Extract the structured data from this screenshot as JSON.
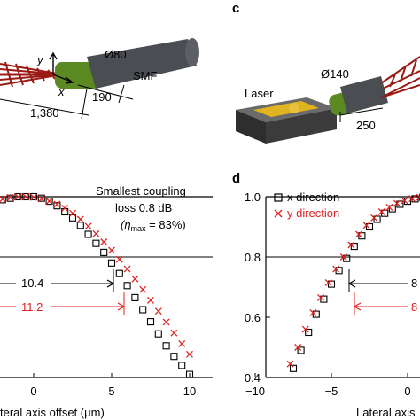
{
  "panels": {
    "a_partial": {
      "labels": {
        "diameter": "Ø80",
        "fiber": "SMF",
        "axis_x": "x",
        "axis_y": "y",
        "dim_1": "190",
        "dim_2": "1,380"
      }
    },
    "c": {
      "letter": "c",
      "labels": {
        "diameter": "Ø140",
        "laser": "Laser",
        "dim": "250"
      }
    },
    "d": {
      "letter": "d"
    }
  },
  "colors": {
    "red": "#e0201f",
    "fiber_dark": "#4a4d52",
    "coat_green": "#5c8a22",
    "lens_red": "#9c1a14",
    "gold": "#e0b320",
    "laser_block": "#3b3b3b"
  },
  "chart_data": [
    {
      "panel": "b",
      "type": "scatter",
      "xlabel_visible": "teral axis offset (μm)",
      "xlim": [
        -5.5,
        12
      ],
      "ylim": [
        0.4,
        1.0
      ],
      "x_ticks": [
        "0",
        "5",
        "10"
      ],
      "series": [
        {
          "name": "x direction",
          "marker": "square",
          "color": "#000000",
          "x": [
            -4.5,
            -4,
            -3.5,
            -3,
            -2.5,
            -2,
            -1.5,
            -1,
            -0.5,
            0,
            0.5,
            1,
            1.5,
            2,
            2.5,
            3,
            3.5,
            4,
            4.5,
            5,
            5.5,
            6,
            6.5,
            7,
            7.5,
            8,
            8.5,
            9,
            9.5,
            10
          ],
          "y": [
            0.91,
            0.935,
            0.955,
            0.97,
            0.98,
            0.99,
            0.995,
            1.0,
            1.0,
            1.0,
            0.995,
            0.985,
            0.97,
            0.95,
            0.93,
            0.905,
            0.875,
            0.845,
            0.815,
            0.78,
            0.745,
            0.705,
            0.665,
            0.625,
            0.585,
            0.545,
            0.505,
            0.47,
            0.44,
            0.41
          ]
        },
        {
          "name": "y direction",
          "marker": "cross",
          "color": "#e0201f",
          "x": [
            -4.5,
            -4,
            -3.5,
            -3,
            -2.5,
            -2,
            -1.5,
            -1,
            -0.5,
            0,
            0.5,
            1,
            1.5,
            2,
            2.5,
            3,
            3.5,
            4,
            4.5,
            5,
            5.5,
            6,
            6.5,
            7,
            7.5,
            8,
            8.5,
            9,
            9.5,
            10
          ],
          "y": [
            0.925,
            0.945,
            0.962,
            0.975,
            0.985,
            0.992,
            0.997,
            1.0,
            1.0,
            0.998,
            0.993,
            0.985,
            0.975,
            0.962,
            0.945,
            0.925,
            0.902,
            0.877,
            0.85,
            0.822,
            0.792,
            0.76,
            0.727,
            0.692,
            0.656,
            0.62,
            0.584,
            0.548,
            0.512,
            0.477
          ]
        }
      ],
      "annotations": {
        "smallest_1": "Smallest coupling",
        "smallest_2": "loss 0.8 dB",
        "eta_open": "(η",
        "eta_sub": "max",
        "eta_close": " = 83%)",
        "width_x": "10.4",
        "width_y": "11.2"
      }
    },
    {
      "panel": "d",
      "type": "scatter",
      "xlabel_visible": "Lateral axis",
      "xlim": [
        -10,
        2
      ],
      "ylim": [
        0.4,
        1.0
      ],
      "x_ticks": [
        "−10",
        "−5",
        "0"
      ],
      "y_ticks": [
        "0.4",
        "0.6",
        "0.8",
        "1.0"
      ],
      "legend": [
        {
          "label": "x direction",
          "marker": "square"
        },
        {
          "label": "y direction",
          "marker": "cross"
        }
      ],
      "series": [
        {
          "name": "x direction",
          "marker": "square",
          "color": "#000000",
          "x": [
            -7.5,
            -7,
            -6.5,
            -6,
            -5.5,
            -5,
            -4.5,
            -4,
            -3.5,
            -3,
            -2.5,
            -2,
            -1.5,
            -1,
            -0.5,
            0,
            0.5,
            1,
            1.5
          ],
          "y": [
            0.43,
            0.49,
            0.55,
            0.61,
            0.66,
            0.71,
            0.755,
            0.795,
            0.835,
            0.87,
            0.9,
            0.925,
            0.945,
            0.96,
            0.975,
            0.985,
            0.993,
            0.998,
            1.0
          ]
        },
        {
          "name": "y direction",
          "marker": "cross",
          "color": "#e0201f",
          "x": [
            -7.7,
            -7.2,
            -6.7,
            -6.2,
            -5.7,
            -5.2,
            -4.7,
            -4.2,
            -3.7,
            -3.2,
            -2.7,
            -2.2,
            -1.7,
            -1.2,
            -0.7,
            -0.2,
            0.3,
            0.8,
            1.3
          ],
          "y": [
            0.445,
            0.5,
            0.56,
            0.615,
            0.665,
            0.715,
            0.76,
            0.8,
            0.84,
            0.875,
            0.905,
            0.93,
            0.95,
            0.965,
            0.978,
            0.987,
            0.994,
            0.998,
            1.0
          ]
        }
      ],
      "annotations": {
        "width_x_partial": "8",
        "width_y_partial": "8"
      }
    }
  ]
}
